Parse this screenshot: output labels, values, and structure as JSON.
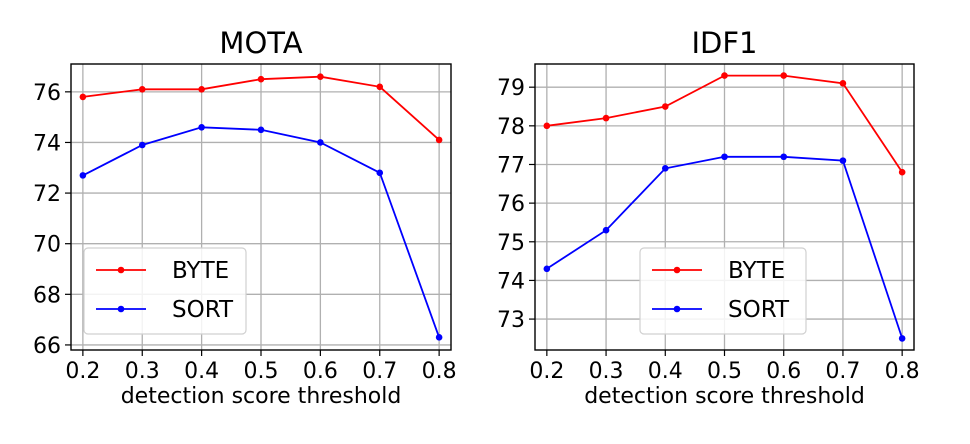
{
  "chart_data": [
    {
      "type": "line",
      "title": "MOTA",
      "xlabel": "detection score threshold",
      "ylabel": "",
      "x": [
        0.2,
        0.3,
        0.4,
        0.5,
        0.6,
        0.7,
        0.8
      ],
      "xlim": [
        0.18,
        0.82
      ],
      "ylim": [
        65.8,
        77.1
      ],
      "xticks": [
        "0.2",
        "0.3",
        "0.4",
        "0.5",
        "0.6",
        "0.7",
        "0.8"
      ],
      "yticks": [
        66,
        68,
        70,
        72,
        74,
        76
      ],
      "ytick_labels": [
        "66",
        "68",
        "70",
        "72",
        "74",
        "76"
      ],
      "grid": true,
      "legend_position": "lower-left",
      "series": [
        {
          "name": "BYTE",
          "color": "#ff0000",
          "values": [
            75.8,
            76.1,
            76.1,
            76.5,
            76.6,
            76.2,
            74.1
          ]
        },
        {
          "name": "SORT",
          "color": "#0000ff",
          "values": [
            72.7,
            73.9,
            74.6,
            74.5,
            74.0,
            72.8,
            66.3
          ]
        }
      ]
    },
    {
      "type": "line",
      "title": "IDF1",
      "xlabel": "detection score threshold",
      "ylabel": "",
      "x": [
        0.2,
        0.3,
        0.4,
        0.5,
        0.6,
        0.7,
        0.8
      ],
      "xlim": [
        0.18,
        0.82
      ],
      "ylim": [
        72.2,
        79.6
      ],
      "xticks": [
        "0.2",
        "0.3",
        "0.4",
        "0.5",
        "0.6",
        "0.7",
        "0.8"
      ],
      "yticks": [
        73,
        74,
        75,
        76,
        77,
        78,
        79
      ],
      "ytick_labels": [
        "73",
        "74",
        "75",
        "76",
        "77",
        "78",
        "79"
      ],
      "grid": true,
      "legend_position": "lower-right",
      "series": [
        {
          "name": "BYTE",
          "color": "#ff0000",
          "values": [
            78.0,
            78.2,
            78.5,
            79.3,
            79.3,
            79.1,
            76.8
          ]
        },
        {
          "name": "SORT",
          "color": "#0000ff",
          "values": [
            74.3,
            75.3,
            76.9,
            77.2,
            77.2,
            77.1,
            72.5
          ]
        }
      ]
    }
  ]
}
